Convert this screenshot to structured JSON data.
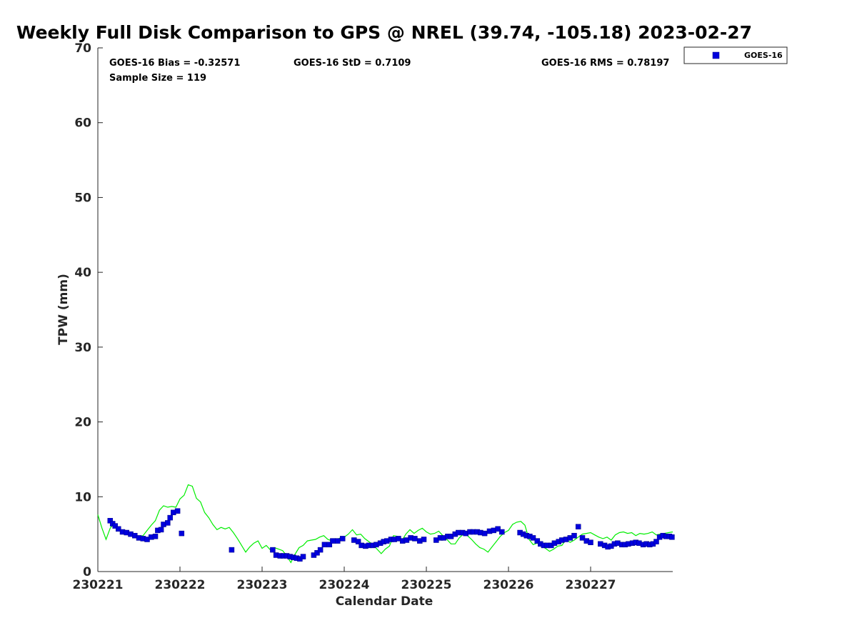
{
  "chart_data": {
    "type": "scatter",
    "title": "Weekly Full Disk Comparison to GPS @ NREL (39.74, -105.18) 2023-02-27",
    "xlabel": "Calendar Date",
    "ylabel": "TPW (mm)",
    "xlim": [
      0,
      7
    ],
    "ylim": [
      0,
      70
    ],
    "x_ticks": [
      0,
      1,
      2,
      3,
      4,
      5,
      6
    ],
    "x_tick_labels": [
      "230221",
      "230222",
      "230223",
      "230224",
      "230225",
      "230226",
      "230227"
    ],
    "y_ticks": [
      0,
      10,
      20,
      30,
      40,
      50,
      60,
      70
    ],
    "y_tick_labels": [
      "0",
      "10",
      "20",
      "30",
      "40",
      "50",
      "60",
      "70"
    ],
    "annotations": {
      "bias": "GOES-16 Bias = -0.32571",
      "std": "GOES-16 StD = 0.7109",
      "rms": "GOES-16 RMS = 0.78197",
      "sample": "Sample Size = 119"
    },
    "legend": {
      "label": "GOES-16",
      "position": "top-right-outside"
    },
    "colors": {
      "goes": "#0000dd",
      "gps": "#00ee00",
      "axis": "#262626"
    },
    "gps_series": {
      "name": "GPS",
      "x": [
        0.0,
        0.05,
        0.1,
        0.15,
        0.2,
        0.25,
        0.3,
        0.35,
        0.4,
        0.45,
        0.5,
        0.55,
        0.6,
        0.65,
        0.7,
        0.75,
        0.8,
        0.85,
        0.9,
        0.95,
        1.0,
        1.05,
        1.1,
        1.15,
        1.2,
        1.25,
        1.3,
        1.35,
        1.4,
        1.45,
        1.5,
        1.55,
        1.6,
        1.65,
        1.7,
        1.75,
        1.8,
        1.85,
        1.9,
        1.95,
        2.0,
        2.05,
        2.1,
        2.15,
        2.2,
        2.25,
        2.3,
        2.35,
        2.4,
        2.45,
        2.5,
        2.55,
        2.6,
        2.65,
        2.7,
        2.75,
        2.8,
        2.85,
        2.9,
        2.95,
        3.0,
        3.05,
        3.1,
        3.15,
        3.2,
        3.25,
        3.3,
        3.35,
        3.4,
        3.45,
        3.5,
        3.55,
        3.6,
        3.65,
        3.7,
        3.75,
        3.8,
        3.85,
        3.9,
        3.95,
        4.0,
        4.05,
        4.1,
        4.15,
        4.2,
        4.25,
        4.3,
        4.35,
        4.4,
        4.45,
        4.5,
        4.55,
        4.6,
        4.65,
        4.7,
        4.75,
        4.8,
        4.85,
        4.9,
        4.95,
        5.0,
        5.05,
        5.1,
        5.15,
        5.2,
        5.25,
        5.3,
        5.35,
        5.4,
        5.45,
        5.5,
        5.55,
        5.6,
        5.65,
        5.7,
        5.75,
        5.8,
        5.85,
        5.9,
        5.95,
        6.0,
        6.05,
        6.1,
        6.15,
        6.2,
        6.25,
        6.3,
        6.35,
        6.4,
        6.45,
        6.5,
        6.55,
        6.6,
        6.65,
        6.7,
        6.75,
        6.8,
        6.85,
        6.9,
        6.95,
        7.0
      ],
      "y": [
        7.6,
        5.8,
        4.3,
        5.8,
        6.5,
        5.8,
        5.2,
        5.3,
        5.0,
        4.8,
        4.7,
        4.8,
        5.5,
        6.2,
        6.8,
        8.2,
        8.8,
        8.6,
        8.7,
        8.6,
        9.7,
        10.2,
        11.6,
        11.4,
        9.8,
        9.3,
        7.9,
        7.2,
        6.3,
        5.6,
        5.9,
        5.7,
        5.9,
        5.2,
        4.4,
        3.5,
        2.6,
        3.3,
        3.8,
        4.1,
        3.1,
        3.5,
        2.9,
        3.2,
        3.0,
        2.8,
        2.1,
        1.2,
        2.3,
        3.2,
        3.5,
        4.1,
        4.2,
        4.3,
        4.6,
        4.8,
        4.3,
        4.1,
        4.2,
        4.5,
        4.6,
        5.0,
        5.6,
        4.9,
        5.0,
        4.4,
        4.0,
        3.6,
        3.0,
        2.4,
        3.0,
        3.4,
        4.8,
        4.7,
        4.1,
        5.0,
        5.6,
        5.1,
        5.5,
        5.8,
        5.3,
        5.0,
        5.1,
        5.4,
        4.8,
        4.3,
        3.7,
        3.7,
        4.5,
        5.0,
        4.8,
        4.3,
        3.7,
        3.2,
        3.0,
        2.6,
        3.3,
        4.0,
        4.7,
        5.2,
        5.5,
        6.3,
        6.6,
        6.7,
        6.2,
        4.3,
        3.6,
        3.8,
        3.4,
        3.1,
        2.7,
        3.0,
        3.4,
        3.5,
        4.3,
        3.9,
        4.2,
        4.6,
        5.0,
        5.1,
        5.2,
        4.9,
        4.6,
        4.4,
        4.6,
        4.2,
        4.9,
        5.2,
        5.3,
        5.1,
        5.2,
        4.8,
        5.1,
        5.0,
        5.1,
        5.3,
        4.9,
        5.0,
        5.1,
        5.2,
        5.3
      ]
    },
    "series": [
      {
        "name": "GOES-16",
        "x": [
          0.15,
          0.18,
          0.21,
          0.25,
          0.3,
          0.35,
          0.4,
          0.45,
          0.5,
          0.55,
          0.6,
          0.65,
          0.7,
          0.73,
          0.77,
          0.8,
          0.85,
          0.88,
          0.92,
          0.97,
          1.02,
          1.63,
          2.13,
          2.17,
          2.22,
          2.26,
          2.3,
          2.34,
          2.38,
          2.42,
          2.46,
          2.5,
          2.63,
          2.67,
          2.71,
          2.76,
          2.82,
          2.86,
          2.92,
          2.98,
          3.12,
          3.17,
          3.21,
          3.26,
          3.3,
          3.35,
          3.39,
          3.44,
          3.48,
          3.52,
          3.57,
          3.61,
          3.66,
          3.71,
          3.76,
          3.81,
          3.86,
          3.92,
          3.97,
          4.12,
          4.17,
          4.21,
          4.26,
          4.3,
          4.35,
          4.39,
          4.44,
          4.48,
          4.53,
          4.57,
          4.62,
          4.66,
          4.71,
          4.77,
          4.82,
          4.87,
          4.92,
          5.14,
          5.18,
          5.22,
          5.26,
          5.3,
          5.35,
          5.39,
          5.43,
          5.47,
          5.52,
          5.56,
          5.61,
          5.65,
          5.7,
          5.75,
          5.8,
          5.85,
          5.9,
          5.95,
          6.0,
          6.12,
          6.17,
          6.21,
          6.25,
          6.29,
          6.33,
          6.38,
          6.42,
          6.46,
          6.51,
          6.55,
          6.59,
          6.64,
          6.68,
          6.72,
          6.76,
          6.8,
          6.84,
          6.88,
          6.92,
          6.96,
          6.99
        ],
        "y": [
          6.8,
          6.4,
          6.1,
          5.7,
          5.3,
          5.2,
          5.0,
          4.8,
          4.5,
          4.4,
          4.3,
          4.6,
          4.7,
          5.5,
          5.6,
          6.3,
          6.5,
          7.2,
          7.9,
          8.1,
          5.1,
          2.9,
          2.9,
          2.2,
          2.1,
          2.1,
          2.1,
          2.0,
          1.9,
          1.8,
          1.7,
          2.0,
          2.2,
          2.5,
          2.9,
          3.6,
          3.6,
          4.1,
          4.1,
          4.4,
          4.2,
          4.0,
          3.5,
          3.4,
          3.5,
          3.5,
          3.6,
          3.8,
          4.0,
          4.1,
          4.3,
          4.3,
          4.4,
          4.1,
          4.2,
          4.5,
          4.4,
          4.1,
          4.3,
          4.2,
          4.5,
          4.5,
          4.7,
          4.7,
          5.0,
          5.2,
          5.2,
          5.1,
          5.3,
          5.3,
          5.3,
          5.2,
          5.1,
          5.4,
          5.5,
          5.7,
          5.3,
          5.2,
          5.0,
          4.8,
          4.7,
          4.5,
          4.1,
          3.7,
          3.5,
          3.5,
          3.5,
          3.8,
          4.0,
          4.2,
          4.3,
          4.5,
          4.8,
          6.0,
          4.5,
          4.1,
          3.9,
          3.7,
          3.5,
          3.3,
          3.4,
          3.7,
          3.8,
          3.6,
          3.6,
          3.7,
          3.8,
          3.9,
          3.8,
          3.6,
          3.7,
          3.6,
          3.7,
          4.0,
          4.6,
          4.8,
          4.7,
          4.7,
          4.6
        ]
      }
    ]
  }
}
